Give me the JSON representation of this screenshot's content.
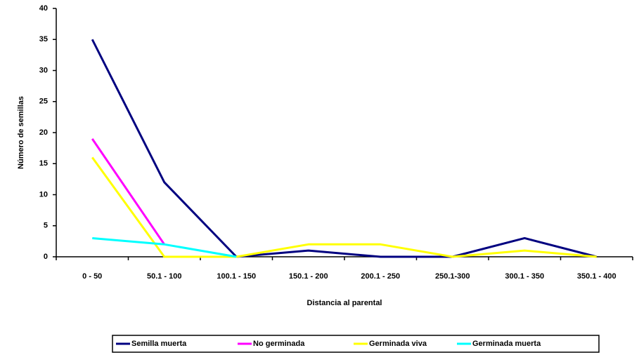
{
  "chart_data": {
    "type": "line",
    "y_label": "Número de semillas",
    "x_label": "Distancia al parental",
    "categories": [
      "0 - 50",
      "50.1 - 100",
      "100.1 - 150",
      "150.1 - 200",
      "200.1 - 250",
      "250.1-300",
      "300.1 - 350",
      "350.1 - 400"
    ],
    "series": [
      {
        "name": "Semilla muerta",
        "color": "#000080",
        "values": [
          35,
          12,
          0,
          1,
          0,
          0,
          3,
          0
        ]
      },
      {
        "name": "No germinada",
        "color": "#ff00ff",
        "values": [
          19,
          2,
          null,
          null,
          null,
          null,
          null,
          null
        ]
      },
      {
        "name": "Germinada viva",
        "color": "#ffff00",
        "values": [
          16,
          0,
          0,
          2,
          2,
          0,
          1,
          0
        ]
      },
      {
        "name": "Germinada muerta",
        "color": "#00ffff",
        "values": [
          3,
          2,
          0,
          null,
          null,
          null,
          null,
          null
        ]
      }
    ],
    "ylim": [
      0,
      40
    ],
    "yticks": [
      0,
      5,
      10,
      15,
      20,
      25,
      30,
      35,
      40
    ]
  }
}
